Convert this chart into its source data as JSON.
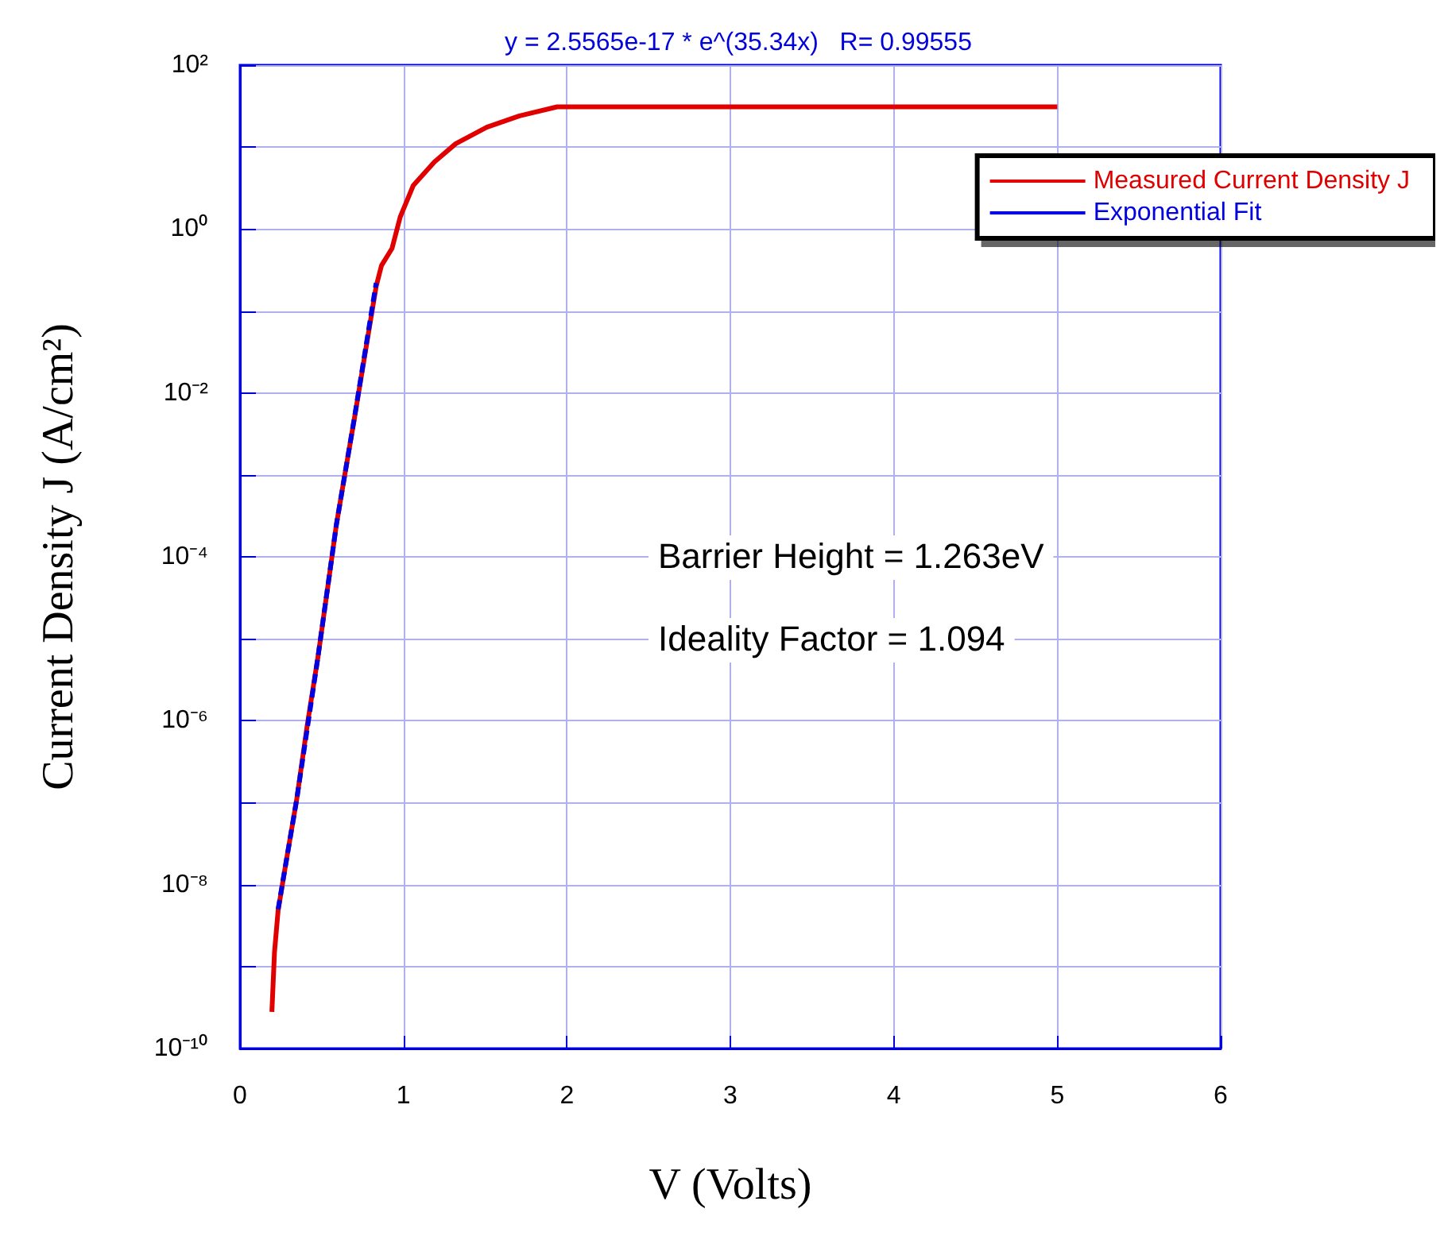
{
  "chart_data": {
    "type": "line",
    "title": "y = 2.5565e-17 * e^(35.34x)   R= 0.99555",
    "xlabel": "V (Volts)",
    "ylabel": "Current Density J (A/cm²)",
    "annotations": [
      "Barrier Height = 1.263eV",
      "Ideality Factor = 1.094"
    ],
    "series": [
      {
        "name": "Measured Current Density J",
        "color": "#e00000",
        "line_style": "solid",
        "x": [
          0.195,
          0.211,
          0.233,
          0.282,
          0.347,
          0.412,
          0.477,
          0.541,
          0.59,
          0.639,
          0.7,
          0.833,
          0.866,
          0.93,
          0.98,
          1.06,
          1.19,
          1.32,
          1.51,
          1.71,
          1.94,
          5
        ],
        "values": [
          2.8e-10,
          1.5e-09,
          4.8e-09,
          1.9e-08,
          1.1e-07,
          9e-07,
          6e-06,
          4.9e-05,
          0.00025,
          0.00095,
          0.0049,
          0.2,
          0.36,
          0.58,
          1.4,
          3.4,
          6.6,
          11,
          17.5,
          24,
          31,
          31
        ]
      },
      {
        "name": "Exponential Fit",
        "color": "#0000e0",
        "line_style": "dashed",
        "x": [
          0.233,
          0.347,
          0.477,
          0.59,
          0.7,
          0.833
        ],
        "values": [
          5e-09,
          1.1e-07,
          6e-06,
          0.00025,
          0.005,
          0.22
        ]
      }
    ],
    "xlim": [
      0,
      6
    ],
    "xticks": [
      0,
      1,
      2,
      3,
      4,
      5,
      6
    ],
    "ylim": [
      1e-10,
      100
    ],
    "log": "y",
    "yticks": [
      {
        "value": 1e-10,
        "label": "10⁻¹⁰"
      },
      {
        "value": 1e-09,
        "label": null
      },
      {
        "value": 1e-08,
        "label": "10⁻⁸"
      },
      {
        "value": 1e-07,
        "label": null
      },
      {
        "value": 1e-06,
        "label": "10⁻⁶"
      },
      {
        "value": 1e-05,
        "label": null
      },
      {
        "value": 0.0001,
        "label": "10⁻⁴"
      },
      {
        "value": 0.001,
        "label": null
      },
      {
        "value": 0.01,
        "label": "10⁻²"
      },
      {
        "value": 0.1,
        "label": null
      },
      {
        "value": 1,
        "label": "10⁰"
      },
      {
        "value": 10,
        "label": null
      },
      {
        "value": 100,
        "label": "10²"
      }
    ],
    "grid": true,
    "legend": "top right",
    "marker": "none"
  }
}
